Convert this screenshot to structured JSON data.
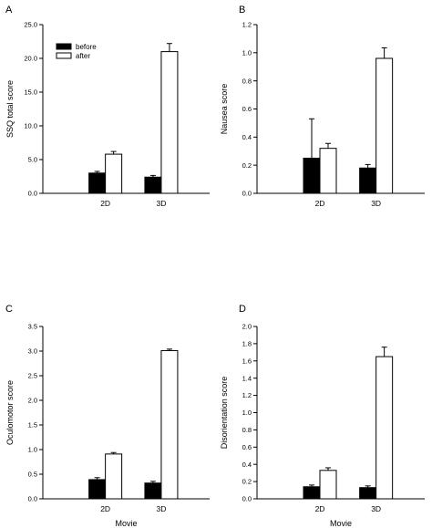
{
  "chart_data": [
    {
      "panel": "A",
      "type": "bar",
      "categories": [
        "2D",
        "3D"
      ],
      "series": [
        {
          "name": "before",
          "values": [
            3.0,
            2.4
          ],
          "errors": [
            0.25,
            0.25
          ],
          "color": "#000000"
        },
        {
          "name": "after",
          "values": [
            5.8,
            21.0
          ],
          "errors": [
            0.4,
            1.2
          ],
          "color": "#ffffff"
        }
      ],
      "ylabel": "SSQ total score",
      "xlabel": "",
      "ylim": [
        0,
        25
      ],
      "yticks": [
        "0.0",
        "5.0",
        "10.0",
        "15.0",
        "20.0",
        "25.0"
      ],
      "legend": "top-left"
    },
    {
      "panel": "B",
      "type": "bar",
      "categories": [
        "2D",
        "3D"
      ],
      "series": [
        {
          "name": "before",
          "values": [
            0.25,
            0.18
          ],
          "errors": [
            0.28,
            0.025
          ],
          "color": "#000000"
        },
        {
          "name": "after",
          "values": [
            0.32,
            0.96
          ],
          "errors": [
            0.035,
            0.075
          ],
          "color": "#ffffff"
        }
      ],
      "ylabel": "Nausea score",
      "xlabel": "",
      "ylim": [
        0,
        1.2
      ],
      "yticks": [
        "0.0",
        "0.2",
        "0.4",
        "0.6",
        "0.8",
        "1.0",
        "1.2"
      ]
    },
    {
      "panel": "C",
      "type": "bar",
      "categories": [
        "2D",
        "3D"
      ],
      "series": [
        {
          "name": "before",
          "values": [
            0.39,
            0.32
          ],
          "errors": [
            0.04,
            0.035
          ],
          "color": "#000000"
        },
        {
          "name": "after",
          "values": [
            0.91,
            3.01
          ],
          "errors": [
            0.03,
            0.03
          ],
          "color": "#ffffff"
        }
      ],
      "ylabel": "Oculomotor score",
      "xlabel": "Movie",
      "ylim": [
        0,
        3.5
      ],
      "yticks": [
        "0.0",
        "0.5",
        "1.0",
        "1.5",
        "2.0",
        "2.5",
        "3.0",
        "3.5"
      ]
    },
    {
      "panel": "D",
      "type": "bar",
      "categories": [
        "2D",
        "3D"
      ],
      "series": [
        {
          "name": "before",
          "values": [
            0.14,
            0.13
          ],
          "errors": [
            0.02,
            0.02
          ],
          "color": "#000000"
        },
        {
          "name": "after",
          "values": [
            0.33,
            1.65
          ],
          "errors": [
            0.03,
            0.11
          ],
          "color": "#ffffff"
        }
      ],
      "ylabel": "Disorientation score",
      "xlabel": "Movie",
      "ylim": [
        0,
        2.0
      ],
      "yticks": [
        "0.0",
        "0.2",
        "0.4",
        "0.6",
        "0.8",
        "1.0",
        "1.2",
        "1.4",
        "1.6",
        "1.8",
        "2.0"
      ]
    }
  ]
}
